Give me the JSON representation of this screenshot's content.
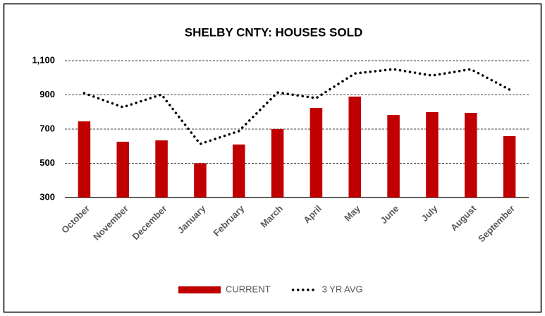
{
  "chart_data": {
    "type": "bar_line",
    "title": "SHELBY CNTY: HOUSES SOLD",
    "categories": [
      "October",
      "November",
      "December",
      "January",
      "February",
      "March",
      "April",
      "May",
      "June",
      "July",
      "August",
      "September"
    ],
    "series": [
      {
        "name": "CURRENT",
        "type": "bar",
        "color": "#c00000",
        "values": [
          745,
          626,
          634,
          500,
          610,
          700,
          824,
          890,
          782,
          799,
          795,
          659
        ]
      },
      {
        "name": "3 YR AVG",
        "type": "line",
        "color": "#000000",
        "values": [
          910,
          828,
          902,
          613,
          688,
          914,
          881,
          1025,
          1050,
          1013,
          1050,
          931
        ]
      }
    ],
    "ylim": [
      300,
      1100
    ],
    "yticks": [
      300,
      500,
      700,
      900,
      {
        "value": 1100,
        "label": "1,100"
      }
    ],
    "grid": true,
    "legend": "bottom"
  }
}
